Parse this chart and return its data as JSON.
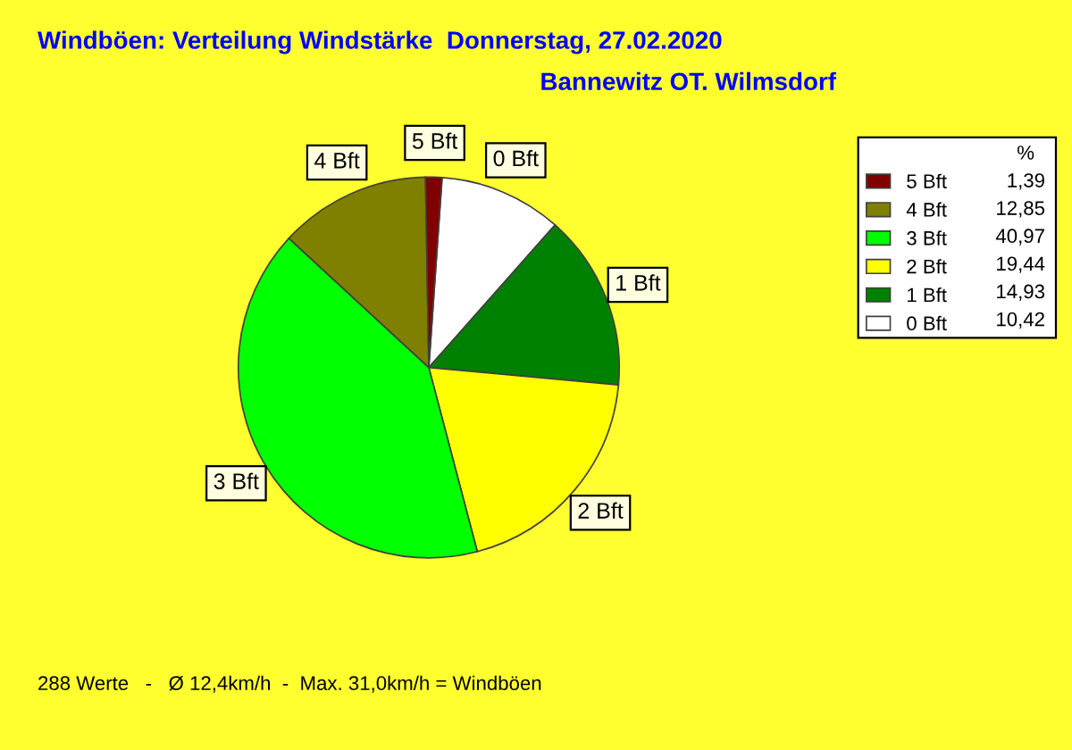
{
  "chart_data": {
    "type": "pie",
    "title": "Windböen: Verteilung Windstärke  Donnerstag, 27.02.2020",
    "subtitle": "Bannewitz OT. Wilmsdorf",
    "categories": [
      "0 Bft",
      "1 Bft",
      "2 Bft",
      "3 Bft",
      "4 Bft",
      "5 Bft"
    ],
    "values": [
      10.42,
      14.93,
      19.44,
      40.97,
      12.85,
      1.39
    ],
    "value_labels": [
      "10,42",
      "14,93",
      "19,44",
      "40,97",
      "12,85",
      "1,39"
    ],
    "colors": [
      "#ffffff",
      "#008000",
      "#ffff00",
      "#00ff00",
      "#808000",
      "#800000"
    ],
    "legend": "top right",
    "legend_title": "%",
    "annotations": [
      "288 Werte   -   Ø 12,4km/h  -  Max. 31,0km/h = Windböen"
    ]
  }
}
